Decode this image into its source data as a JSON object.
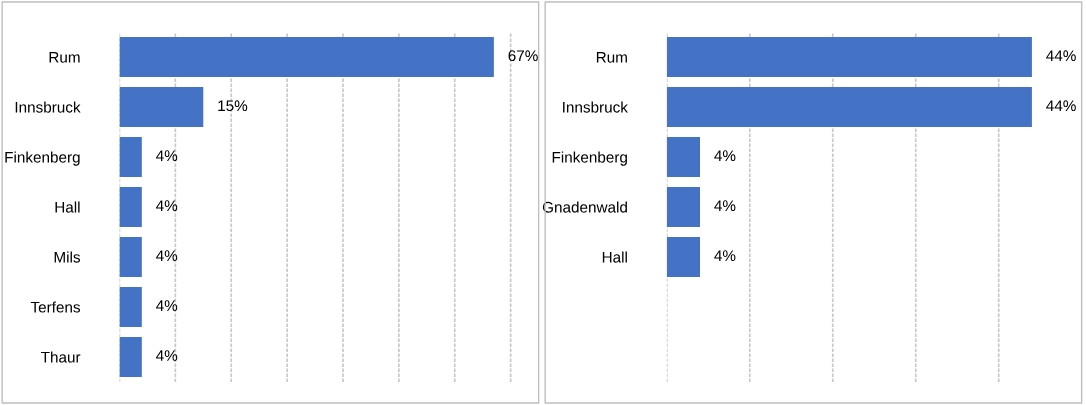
{
  "chart_data": [
    {
      "type": "bar",
      "orientation": "horizontal",
      "categories": [
        "Rum",
        "Innsbruck",
        "Finkenberg",
        "Hall",
        "Mils",
        "Terfens",
        "Thaur"
      ],
      "values": [
        67,
        15,
        4,
        4,
        4,
        4,
        4
      ],
      "value_labels": [
        "67%",
        "15%",
        "4%",
        "4%",
        "4%",
        "4%",
        "4%"
      ],
      "color": "#4472c4",
      "grid": "x",
      "tick_labels": "y"
    },
    {
      "type": "bar",
      "orientation": "horizontal",
      "categories": [
        "Rum",
        "Innsbruck",
        "Finkenberg",
        "Gnadenwald",
        "Hall"
      ],
      "values": [
        44,
        44,
        4,
        4,
        4
      ],
      "value_labels": [
        "44%",
        "44%",
        "4%",
        "4%",
        "4%"
      ],
      "color": "#4472c4",
      "grid": "x",
      "tick_labels": "y"
    }
  ]
}
